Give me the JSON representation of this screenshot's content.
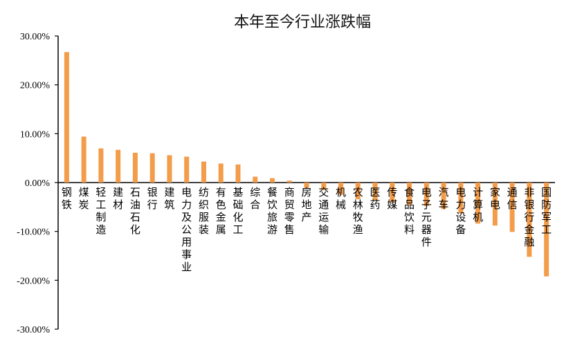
{
  "chart_data": {
    "type": "bar",
    "title": "本年至今行业涨跌幅",
    "xlabel": "",
    "ylabel": "",
    "ylim": [
      -30,
      30
    ],
    "yticks": [
      30,
      20,
      10,
      0,
      -10,
      -20,
      -30
    ],
    "ytick_labels": [
      "30.00%",
      "20.00%",
      "10.00%",
      "0.00%",
      "-10.00%",
      "-20.00%",
      "-30.00%"
    ],
    "grid": false,
    "bar_color": "#F39C4A",
    "categories": [
      "钢铁",
      "煤炭",
      "轻工制造",
      "建材",
      "石油石化",
      "银行",
      "建筑",
      "电力及公用事业",
      "纺织服装",
      "有色金属",
      "基础化工",
      "综合",
      "餐饮旅游",
      "商贸零售",
      "房地产",
      "交通运输",
      "机械",
      "农林牧渔",
      "医药",
      "传媒",
      "食品饮料",
      "电子元器件",
      "汽车",
      "电力设备",
      "计算机",
      "家电",
      "通信",
      "非银行金融",
      "国防军工"
    ],
    "values": [
      26.7,
      9.4,
      7.0,
      6.7,
      6.1,
      6.0,
      5.6,
      5.3,
      4.3,
      3.9,
      3.7,
      1.2,
      0.9,
      0.4,
      -1.1,
      -1.5,
      -2.5,
      -3.4,
      -3.6,
      -4.0,
      -4.6,
      -4.8,
      -5.4,
      -6.3,
      -8.4,
      -8.8,
      -10.1,
      -15.2,
      -19.2
    ]
  }
}
